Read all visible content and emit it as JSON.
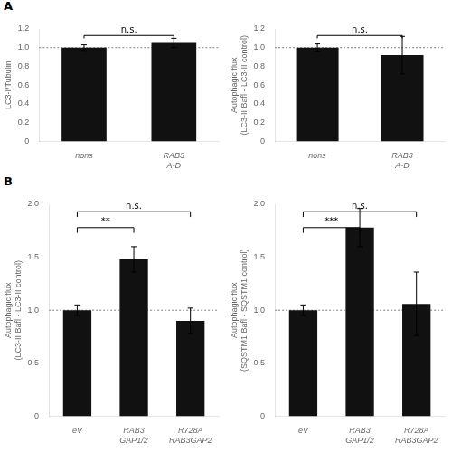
{
  "chart_data": [
    {
      "type": "bar",
      "panel_label": "A",
      "categories": [
        "nons",
        "RAB3\nA-D"
      ],
      "values": [
        1.0,
        1.05
      ],
      "errors": [
        0.03,
        0.05
      ],
      "ylabel": "LC3-I/Tubulin",
      "ylim": [
        0,
        1.2
      ],
      "yticks": [
        0,
        0.2,
        0.4,
        0.6,
        0.8,
        {
          "value": 1.0,
          "label": "1.0"
        },
        1.2
      ],
      "color": "#111111",
      "grid": false,
      "reference_line": 1.0,
      "significance": [
        {
          "between": [
            "nons",
            "RAB3\nA-D"
          ],
          "y": 1.13,
          "label": "n.s."
        }
      ]
    },
    {
      "type": "bar",
      "categories": [
        "nons",
        "RAB3\nA-D"
      ],
      "values": [
        1.0,
        0.92
      ],
      "errors": [
        0.04,
        0.2
      ],
      "ylabel": "Autophagic flux\n(LC3-II Bafl - LC3-II control)",
      "ylim": [
        0,
        1.2
      ],
      "yticks": [
        0,
        0.2,
        0.4,
        0.6,
        0.8,
        {
          "value": 1.0,
          "label": "1.0"
        },
        1.2
      ],
      "color": "#111111",
      "grid": false,
      "reference_line": 1.0,
      "significance": [
        {
          "between": [
            "nons",
            "RAB3\nA-D"
          ],
          "y": 1.13,
          "label": "n.s."
        }
      ]
    },
    {
      "type": "bar",
      "panel_label": "B",
      "categories": [
        "eV",
        "RAB3\nGAP1/2",
        "R728A\nRAB3GAP2"
      ],
      "values": [
        1.0,
        1.48,
        0.9
      ],
      "errors": [
        0.05,
        0.12,
        0.12
      ],
      "ylabel": "Autophagic flux\n(LC3-II Bafl - LC3-II control)",
      "ylim": [
        0,
        2.0
      ],
      "yticks": [
        0,
        0.5,
        {
          "value": 1.0,
          "label": "1.0"
        },
        1.5,
        {
          "value": 2.0,
          "label": "2.0"
        }
      ],
      "color": "#111111",
      "grid": false,
      "reference_line": 1.0,
      "significance": [
        {
          "between": [
            "eV",
            "RAB3\nGAP1/2"
          ],
          "y": 1.78,
          "label": "**"
        },
        {
          "between": [
            "eV",
            "R728A\nRAB3GAP2"
          ],
          "y": 1.93,
          "label": "n.s."
        }
      ]
    },
    {
      "type": "bar",
      "categories": [
        "eV",
        "RAB3\nGAP1/2",
        "R728A\nRAB3GAP2"
      ],
      "values": [
        1.0,
        1.78,
        1.06
      ],
      "errors": [
        0.05,
        0.18,
        0.3
      ],
      "ylabel": "Autophagic flux\n(SQSTM1 Bafl - SQSTM1 control)",
      "ylim": [
        0,
        2.0
      ],
      "yticks": [
        0,
        0.5,
        {
          "value": 1.0,
          "label": "1.0"
        },
        1.5,
        {
          "value": 2.0,
          "label": "2.0"
        }
      ],
      "color": "#111111",
      "grid": false,
      "reference_line": 1.0,
      "significance": [
        {
          "between": [
            "eV",
            "RAB3\nGAP1/2"
          ],
          "y": 1.78,
          "label": "***"
        },
        {
          "between": [
            "eV",
            "R728A\nRAB3GAP2"
          ],
          "y": 1.93,
          "label": "n.s."
        }
      ]
    }
  ]
}
